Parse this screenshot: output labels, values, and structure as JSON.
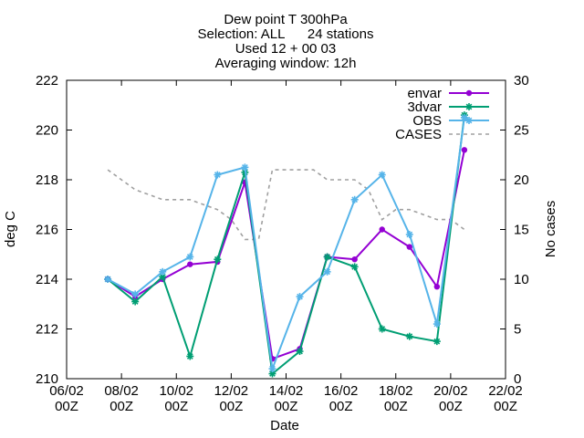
{
  "chart_data": {
    "type": "line",
    "title_lines": [
      "Dew point T 300hPa",
      "Selection: ALL      24 stations",
      "Used 12 + 00 03",
      "Averaging window: 12h"
    ],
    "xlabel": "Date",
    "ylabel": "deg C",
    "y2label": "No cases",
    "xlim": [
      6,
      22
    ],
    "ylim": [
      210,
      222
    ],
    "y2lim": [
      0,
      30
    ],
    "x_ticks": [
      {
        "x": 6,
        "line1": "06/02",
        "line2": "00Z"
      },
      {
        "x": 8,
        "line1": "08/02",
        "line2": "00Z"
      },
      {
        "x": 10,
        "line1": "10/02",
        "line2": "00Z"
      },
      {
        "x": 12,
        "line1": "12/02",
        "line2": "00Z"
      },
      {
        "x": 14,
        "line1": "14/02",
        "line2": "00Z"
      },
      {
        "x": 16,
        "line1": "16/02",
        "line2": "00Z"
      },
      {
        "x": 18,
        "line1": "18/02",
        "line2": "00Z"
      },
      {
        "x": 20,
        "line1": "20/02",
        "line2": "00Z"
      },
      {
        "x": 22,
        "line1": "22/02",
        "line2": "00Z"
      }
    ],
    "y_ticks": [
      "210",
      "212",
      "214",
      "216",
      "218",
      "220",
      "222"
    ],
    "y2_ticks": [
      "0",
      "5",
      "10",
      "15",
      "20",
      "25",
      "30"
    ],
    "grid": false,
    "legend_position": "top-right",
    "series": [
      {
        "name": "envar",
        "color": "#9400d3",
        "axis": "left",
        "marker": "filled-circle",
        "x": [
          7.5,
          8.5,
          9.5,
          10.5,
          11.5,
          12.5,
          13.5,
          14.5,
          15.5,
          16.5,
          17.5,
          18.5,
          19.5,
          20.5
        ],
        "values": [
          214.0,
          213.3,
          214.0,
          214.6,
          214.7,
          217.9,
          210.8,
          211.2,
          214.9,
          214.8,
          216.0,
          215.3,
          213.7,
          219.2
        ]
      },
      {
        "name": "3dvar",
        "color": "#009e73",
        "axis": "left",
        "marker": "asterisk",
        "x": [
          7.5,
          8.5,
          9.5,
          10.5,
          11.5,
          12.5,
          13.5,
          14.5,
          15.5,
          16.5,
          17.5,
          18.5,
          19.5,
          20.5
        ],
        "values": [
          214.0,
          213.1,
          214.1,
          210.9,
          214.8,
          218.3,
          210.2,
          211.1,
          214.9,
          214.5,
          212.0,
          211.7,
          211.5,
          220.6
        ]
      },
      {
        "name": "OBS",
        "color": "#56b4e9",
        "axis": "left",
        "marker": "asterisk",
        "x": [
          7.5,
          8.5,
          9.5,
          10.5,
          11.5,
          12.5,
          13.5,
          14.5,
          15.5,
          16.5,
          17.5,
          18.5,
          19.5,
          20.5
        ],
        "values": [
          214.0,
          213.4,
          214.3,
          214.9,
          218.2,
          218.5,
          210.4,
          213.3,
          214.3,
          217.2,
          218.2,
          215.8,
          212.2,
          220.5
        ]
      },
      {
        "name": "CASES",
        "color": "#a0a0a0",
        "axis": "right",
        "dashed": true,
        "x": [
          7.5,
          8.0,
          8.5,
          9.0,
          9.5,
          10.0,
          10.5,
          11.0,
          11.5,
          12.0,
          12.5,
          13.0,
          13.5,
          14.0,
          14.5,
          15.0,
          15.5,
          16.0,
          16.5,
          17.0,
          17.5,
          18.0,
          18.5,
          19.0,
          19.5,
          20.0,
          20.5
        ],
        "values": [
          21,
          20,
          19,
          18.5,
          18,
          18,
          18,
          17.5,
          17,
          16,
          14,
          14,
          21,
          21,
          21,
          21,
          20,
          20,
          20,
          19,
          16,
          17,
          17,
          16.5,
          16,
          16,
          15
        ]
      }
    ]
  }
}
